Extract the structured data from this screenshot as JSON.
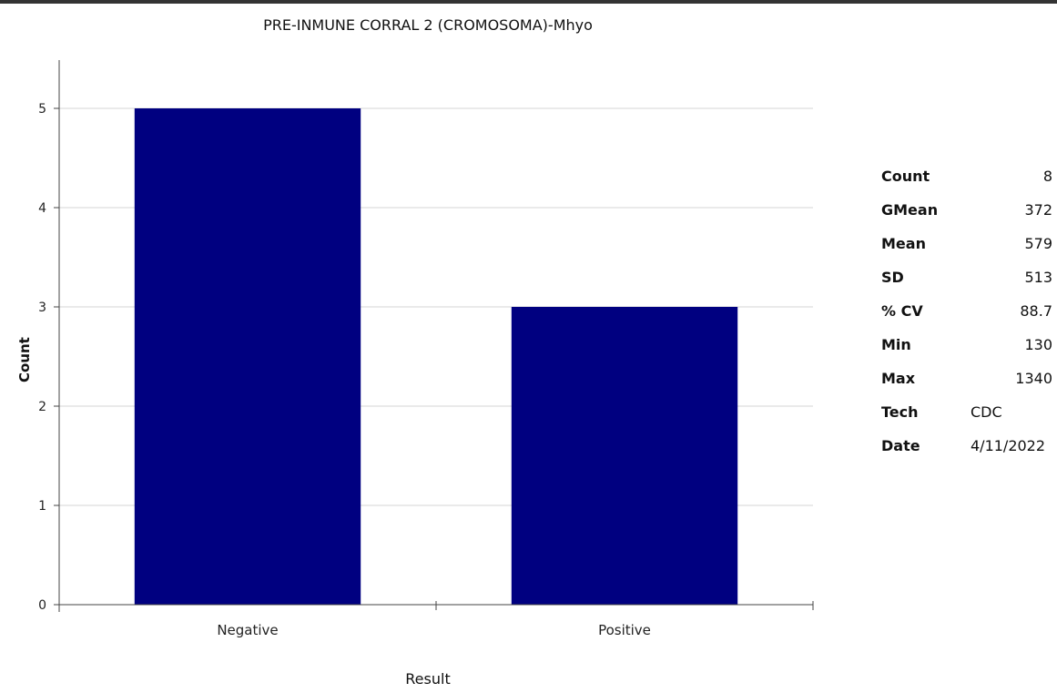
{
  "chart_data": {
    "type": "bar",
    "title": "PRE-INMUNE CORRAL 2 (CROMOSOMA)-Mhyo",
    "xlabel": "Result",
    "ylabel": "Count",
    "categories": [
      "Negative",
      "Positive"
    ],
    "values": [
      5,
      3
    ],
    "ylim": [
      0,
      5
    ],
    "yticks": [
      "0",
      "1",
      "2",
      "3",
      "4",
      "5"
    ],
    "grid": true,
    "bar_color": "#000080"
  },
  "stats": [
    {
      "label": "Count",
      "value": "8",
      "align": "right"
    },
    {
      "label": "GMean",
      "value": "372",
      "align": "right"
    },
    {
      "label": "Mean",
      "value": "579",
      "align": "right"
    },
    {
      "label": "SD",
      "value": "513",
      "align": "right"
    },
    {
      "label": "% CV",
      "value": "88.7",
      "align": "right"
    },
    {
      "label": "Min",
      "value": "130",
      "align": "right"
    },
    {
      "label": "Max",
      "value": "1340",
      "align": "right"
    },
    {
      "label": "Tech",
      "value": "CDC",
      "align": "left"
    },
    {
      "label": "Date",
      "value": "4/11/2022",
      "align": "left"
    }
  ]
}
